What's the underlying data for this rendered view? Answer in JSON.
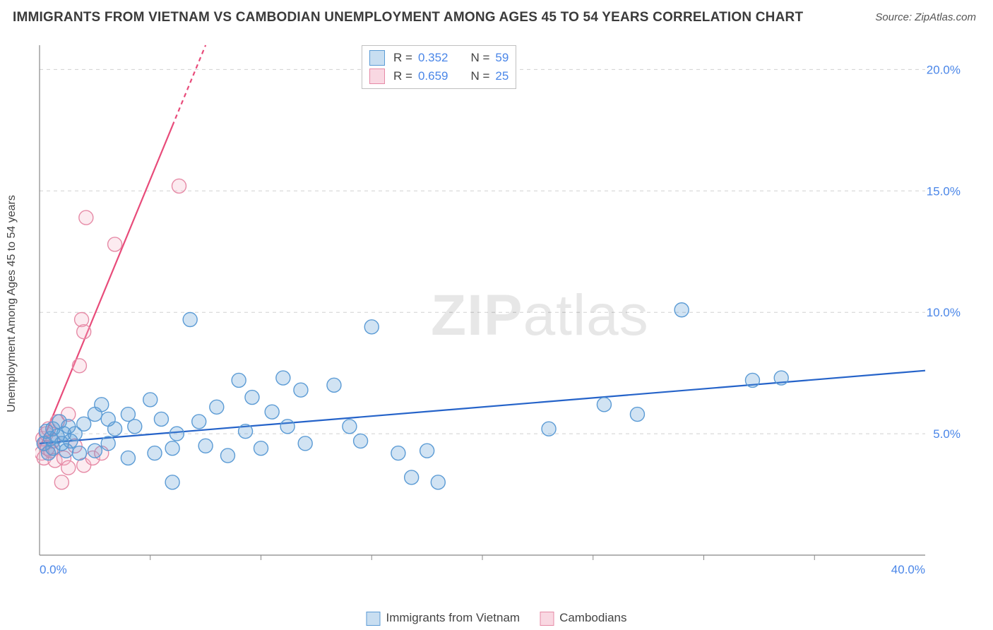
{
  "title": "IMMIGRANTS FROM VIETNAM VS CAMBODIAN UNEMPLOYMENT AMONG AGES 45 TO 54 YEARS CORRELATION CHART",
  "source_label": "Source:",
  "source_value": "ZipAtlas.com",
  "y_axis_label": "Unemployment Among Ages 45 to 54 years",
  "watermark_bold": "ZIP",
  "watermark_light": "atlas",
  "chart": {
    "type": "scatter",
    "x_domain": [
      0,
      40
    ],
    "y_domain": [
      0,
      21
    ],
    "background_color": "#ffffff",
    "grid_color": "#d0d0d0",
    "axis_color": "#888888",
    "y_ticks": [
      {
        "v": 5,
        "label": "5.0%"
      },
      {
        "v": 10,
        "label": "10.0%"
      },
      {
        "v": 15,
        "label": "15.0%"
      },
      {
        "v": 20,
        "label": "20.0%"
      }
    ],
    "x_ticks_unlabeled": [
      5,
      10,
      15,
      20,
      25,
      30,
      35
    ],
    "x_ticks_labeled": [
      {
        "v": 0,
        "label": "0.0%"
      },
      {
        "v": 40,
        "label": "40.0%"
      }
    ],
    "marker_radius": 10,
    "marker_stroke_width": 1.4,
    "marker_fill_opacity": 0.28,
    "trend_line_width": 2.2,
    "series": [
      {
        "key": "vietnam",
        "label": "Immigrants from Vietnam",
        "color_stroke": "#5b9bd5",
        "color_fill": "#5b9bd5",
        "trend_color": "#2563c9",
        "R": "0.352",
        "N": "59",
        "trend_line": {
          "x1": 0,
          "y1": 4.6,
          "x2": 40,
          "y2": 7.6
        },
        "points": [
          [
            0.2,
            4.6
          ],
          [
            0.3,
            5.1
          ],
          [
            0.4,
            4.2
          ],
          [
            0.5,
            4.8
          ],
          [
            0.6,
            5.2
          ],
          [
            0.6,
            4.4
          ],
          [
            0.8,
            4.9
          ],
          [
            0.9,
            5.5
          ],
          [
            1.0,
            4.6
          ],
          [
            1.1,
            5.0
          ],
          [
            1.2,
            4.3
          ],
          [
            1.3,
            5.3
          ],
          [
            1.4,
            4.7
          ],
          [
            1.6,
            5.0
          ],
          [
            1.8,
            4.2
          ],
          [
            2.0,
            5.4
          ],
          [
            2.5,
            5.8
          ],
          [
            2.5,
            4.3
          ],
          [
            2.8,
            6.2
          ],
          [
            3.1,
            4.6
          ],
          [
            3.1,
            5.6
          ],
          [
            3.4,
            5.2
          ],
          [
            4.0,
            5.8
          ],
          [
            4.0,
            4.0
          ],
          [
            4.3,
            5.3
          ],
          [
            5.0,
            6.4
          ],
          [
            5.2,
            4.2
          ],
          [
            5.5,
            5.6
          ],
          [
            6.0,
            4.4
          ],
          [
            6.0,
            3.0
          ],
          [
            6.2,
            5.0
          ],
          [
            6.8,
            9.7
          ],
          [
            7.2,
            5.5
          ],
          [
            7.5,
            4.5
          ],
          [
            8.0,
            6.1
          ],
          [
            8.5,
            4.1
          ],
          [
            9.0,
            7.2
          ],
          [
            9.3,
            5.1
          ],
          [
            9.6,
            6.5
          ],
          [
            10.0,
            4.4
          ],
          [
            10.5,
            5.9
          ],
          [
            11.0,
            7.3
          ],
          [
            11.2,
            5.3
          ],
          [
            11.8,
            6.8
          ],
          [
            12.0,
            4.6
          ],
          [
            13.3,
            7.0
          ],
          [
            14.0,
            5.3
          ],
          [
            14.5,
            4.7
          ],
          [
            15.0,
            9.4
          ],
          [
            16.2,
            4.2
          ],
          [
            16.8,
            3.2
          ],
          [
            17.5,
            4.3
          ],
          [
            18.0,
            3.0
          ],
          [
            23.0,
            5.2
          ],
          [
            25.5,
            6.2
          ],
          [
            27.0,
            5.8
          ],
          [
            29.0,
            10.1
          ],
          [
            32.2,
            7.2
          ],
          [
            33.5,
            7.3
          ]
        ]
      },
      {
        "key": "cambodian",
        "label": "Cambodians",
        "color_stroke": "#e68aa6",
        "color_fill": "#f4b6c8",
        "trend_color": "#e84b7a",
        "R": "0.659",
        "N": "25",
        "trend_line": {
          "x1": 0,
          "y1": 4.4,
          "x2": 7.5,
          "y2": 21
        },
        "trend_line_dash_after_x": 6.0,
        "points": [
          [
            0.1,
            4.2
          ],
          [
            0.15,
            4.8
          ],
          [
            0.2,
            4.0
          ],
          [
            0.25,
            4.6
          ],
          [
            0.3,
            5.0
          ],
          [
            0.35,
            4.4
          ],
          [
            0.4,
            5.2
          ],
          [
            0.5,
            4.3
          ],
          [
            0.6,
            4.7
          ],
          [
            0.7,
            3.9
          ],
          [
            0.8,
            5.5
          ],
          [
            1.0,
            3.0
          ],
          [
            1.1,
            4.0
          ],
          [
            1.3,
            5.8
          ],
          [
            1.3,
            3.6
          ],
          [
            1.6,
            4.5
          ],
          [
            1.9,
            9.7
          ],
          [
            2.0,
            9.2
          ],
          [
            1.8,
            7.8
          ],
          [
            2.0,
            3.7
          ],
          [
            2.4,
            4.0
          ],
          [
            2.1,
            13.9
          ],
          [
            2.8,
            4.2
          ],
          [
            3.4,
            12.8
          ],
          [
            6.3,
            15.2
          ]
        ]
      }
    ]
  },
  "legend": {
    "R_label": "R =",
    "N_label": "N ="
  }
}
